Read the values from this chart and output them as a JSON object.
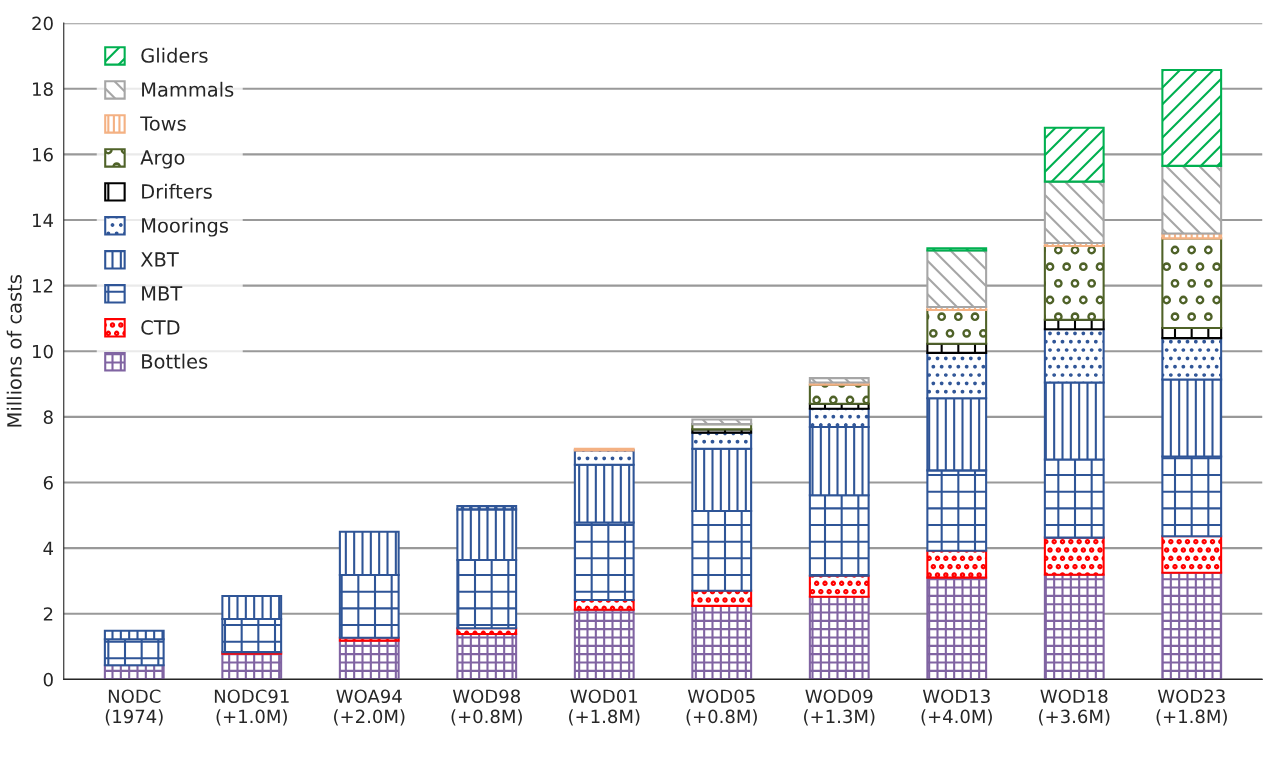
{
  "chart_data": {
    "type": "bar",
    "stacked": true,
    "ylabel": "Millions of casts",
    "categories": [
      "NODC\n(1974)",
      "NODC91\n(+1.0M)",
      "WOA94\n(+2.0M)",
      "WOD98\n(+0.8M)",
      "WOD01\n(+1.8M)",
      "WOD05\n(+0.8M)",
      "WOD09\n(+1.3M)",
      "WOD13\n(+4.0M)",
      "WOD18\n(+3.6M)",
      "WOD23\n(+1.8M)"
    ],
    "series": [
      {
        "name": "Bottles",
        "color": "#8064a2",
        "values": [
          0.43,
          0.78,
          1.18,
          1.38,
          2.12,
          2.24,
          2.52,
          3.1,
          3.19,
          3.25
        ]
      },
      {
        "name": "CTD",
        "color": "#ff0000",
        "values": [
          null,
          0.05,
          0.09,
          0.18,
          0.3,
          0.46,
          0.64,
          0.82,
          1.13,
          1.11
        ]
      },
      {
        "name": "MBT",
        "color": "#2f5597",
        "values": [
          0.79,
          1.01,
          1.91,
          2.08,
          2.36,
          2.43,
          2.45,
          2.45,
          2.38,
          2.43
        ]
      },
      {
        "name": "XBT",
        "color": "#2f5597",
        "values": [
          0.26,
          0.7,
          1.32,
          1.54,
          1.76,
          1.9,
          2.08,
          2.2,
          2.35,
          2.35
        ]
      },
      {
        "name": "Moorings",
        "color": "#2f5597",
        "values": [
          null,
          null,
          null,
          0.1,
          0.44,
          0.49,
          0.56,
          1.38,
          1.62,
          1.26
        ]
      },
      {
        "name": "Drifters",
        "color": "#000000",
        "values": [
          null,
          null,
          null,
          null,
          null,
          0.1,
          0.15,
          0.28,
          0.29,
          0.31
        ]
      },
      {
        "name": "Argo",
        "color": "#4f6228",
        "values": [
          null,
          null,
          null,
          null,
          null,
          0.16,
          0.58,
          1.03,
          2.25,
          2.73
        ]
      },
      {
        "name": "Tows",
        "color": "#f4b183",
        "values": [
          null,
          null,
          null,
          null,
          0.05,
          null,
          0.07,
          0.09,
          0.09,
          0.15
        ]
      },
      {
        "name": "Mammals",
        "color": "#a6a6a6",
        "values": [
          null,
          null,
          null,
          null,
          null,
          0.14,
          0.13,
          1.72,
          1.87,
          2.06
        ]
      },
      {
        "name": "Gliders",
        "color": "#00b050",
        "values": [
          null,
          null,
          null,
          null,
          null,
          null,
          null,
          0.07,
          1.64,
          2.92
        ]
      }
    ],
    "ylim": [
      0,
      20
    ],
    "yticks": [
      0,
      2,
      4,
      6,
      8,
      10,
      12,
      14,
      16,
      18,
      20
    ],
    "grid": "y",
    "legend": "top left"
  }
}
